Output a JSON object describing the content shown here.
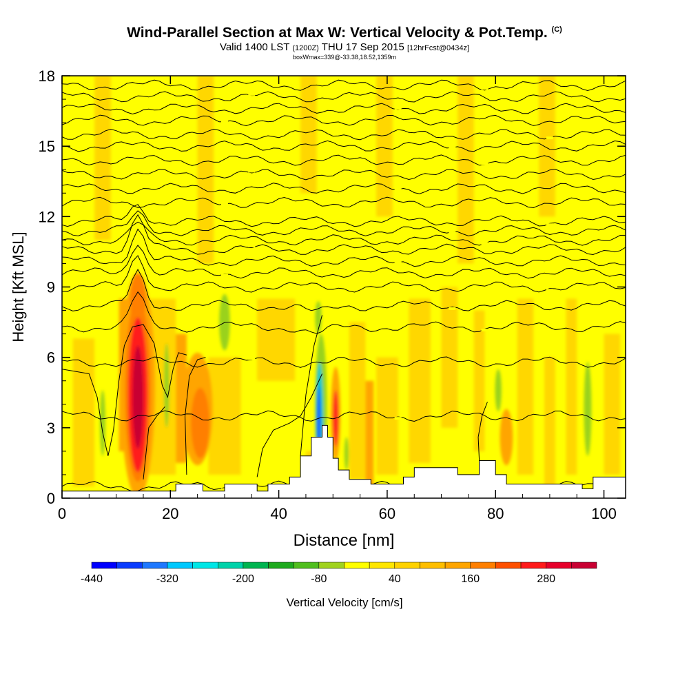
{
  "title": {
    "main": "Wind-Parallel Section at Max W: Vertical Velocity & Pot.Temp.",
    "main_tag": "(C)",
    "valid_prefix": "Valid 1400 LST",
    "valid_utc": "(1200Z)",
    "valid_date": "THU 17 Sep 2015",
    "forecast": "[12hrFcst@0434z]",
    "box_info": "boxWmax=339@-33.38,18.52,1359m"
  },
  "colors": {
    "background_yellow": "#ffff00",
    "light_orange": "#ffd700",
    "orange": "#ffa500",
    "dark_orange": "#ff7f00",
    "red": "#ff1a1a",
    "dark_red": "#c80032",
    "green": "#9ad21e",
    "cyan": "#00c8c8",
    "blue": "#1e64ff"
  },
  "colorbar": {
    "label": "Vertical Velocity [cm/s]",
    "tick_labels": [
      "-440",
      "-320",
      "-200",
      "-80",
      "40",
      "160",
      "280"
    ],
    "levels": [
      -440,
      -400,
      -360,
      -320,
      -280,
      -240,
      -200,
      -160,
      -120,
      -80,
      -40,
      0,
      40,
      80,
      120,
      160,
      200,
      240,
      280,
      320
    ],
    "colors": [
      "#0000ff",
      "#0a3cff",
      "#1e78ff",
      "#00c8ff",
      "#00e6e6",
      "#00d2aa",
      "#00b450",
      "#1eaa1e",
      "#50be1e",
      "#a0d21e",
      "#ffff00",
      "#ffe600",
      "#ffd200",
      "#ffbe00",
      "#ffa500",
      "#ff7f00",
      "#ff5000",
      "#ff1a1a",
      "#e6002a",
      "#c80032"
    ]
  },
  "chart_data": {
    "type": "heatmap",
    "title": "Wind-Parallel Section at Max W: Vertical Velocity & Pot.Temp.",
    "xlabel": "Distance [nm]",
    "ylabel": "Height [Kft MSL]",
    "xlim": [
      0,
      104
    ],
    "ylim": [
      0,
      18
    ],
    "x_ticks": [
      0,
      20,
      40,
      60,
      80,
      100
    ],
    "y_ticks": [
      0,
      3,
      6,
      9,
      12,
      15,
      18
    ],
    "fill_variable": "Vertical Velocity [cm/s]",
    "contour_variable": "Potential Temperature [C]",
    "features": [
      {
        "name": "updraft core",
        "x_center": 14,
        "z_bottom": 0.8,
        "z_top": 9.5,
        "max_value": 339
      },
      {
        "name": "updraft",
        "x_center": 25,
        "z_bottom": 1.5,
        "z_top": 6.5,
        "max_value": 180
      },
      {
        "name": "downdraft",
        "x_center": 48,
        "z_bottom": 1.5,
        "z_top": 7.5,
        "min_value": -440
      },
      {
        "name": "updraft",
        "x_center": 50.5,
        "z_bottom": 2.0,
        "z_top": 5.5,
        "max_value": 200
      },
      {
        "name": "updraft",
        "x_center": 82,
        "z_bottom": 1.5,
        "z_top": 3.8,
        "max_value": 160
      },
      {
        "name": "downdraft",
        "x_center": 97,
        "z_bottom": 1.0,
        "z_top": 5.5,
        "min_value": -80
      }
    ],
    "theta_contours_kft": [
      0.5,
      3.5,
      5.8,
      7.3,
      8.2,
      9.0,
      9.6,
      10.1,
      10.6,
      11.0,
      11.4,
      11.8,
      12.6,
      13.2,
      13.8,
      14.4,
      15.0,
      15.5,
      16.1,
      16.6,
      17.1,
      17.6
    ],
    "terrain_kft": [
      [
        0,
        0.3
      ],
      [
        8,
        0.3
      ],
      [
        21,
        0.3
      ],
      [
        21,
        0.6
      ],
      [
        26,
        0.6
      ],
      [
        26,
        0.3
      ],
      [
        30,
        0.3
      ],
      [
        30,
        0.6
      ],
      [
        36,
        0.6
      ],
      [
        36,
        0.3
      ],
      [
        38,
        0.3
      ],
      [
        38,
        0.6
      ],
      [
        42,
        0.6
      ],
      [
        42,
        0.9
      ],
      [
        44,
        0.9
      ],
      [
        44,
        1.8
      ],
      [
        46,
        1.8
      ],
      [
        46,
        2.6
      ],
      [
        48,
        2.6
      ],
      [
        48,
        3.1
      ],
      [
        49,
        3.1
      ],
      [
        49,
        2.6
      ],
      [
        50,
        2.6
      ],
      [
        50,
        1.7
      ],
      [
        51,
        1.7
      ],
      [
        51,
        1.2
      ],
      [
        53,
        1.2
      ],
      [
        53,
        0.8
      ],
      [
        57,
        0.8
      ],
      [
        57,
        0.6
      ],
      [
        63,
        0.6
      ],
      [
        63,
        0.9
      ],
      [
        65,
        0.9
      ],
      [
        65,
        1.3
      ],
      [
        73,
        1.3
      ],
      [
        73,
        1.0
      ],
      [
        77,
        1.0
      ],
      [
        77,
        1.6
      ],
      [
        80,
        1.6
      ],
      [
        80,
        1.0
      ],
      [
        82,
        1.0
      ],
      [
        82,
        0.6
      ],
      [
        86,
        0.6
      ],
      [
        86,
        0.6
      ],
      [
        96,
        0.6
      ],
      [
        96,
        0.4
      ],
      [
        98,
        0.4
      ],
      [
        98,
        0.9
      ],
      [
        104,
        0.9
      ]
    ]
  }
}
